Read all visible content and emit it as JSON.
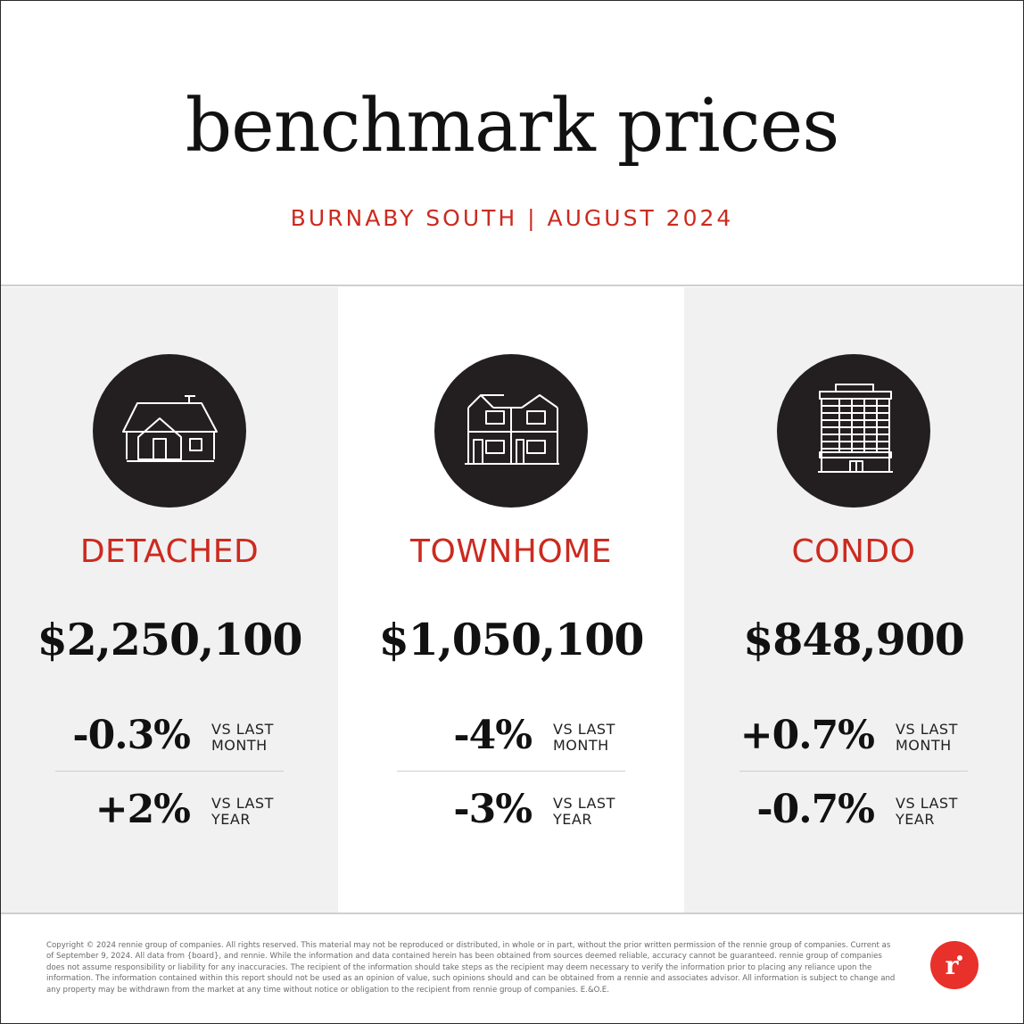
{
  "header": {
    "title": "benchmark prices",
    "subtitle": "BURNABY SOUTH | AUGUST 2024"
  },
  "colors": {
    "accent": "#cc2a1f",
    "icon_bg": "#231f20",
    "panel_gray": "#f1f1f1",
    "logo": "#e8312a"
  },
  "panels": [
    {
      "icon": "detached-house-icon",
      "label": "DETACHED",
      "price": "$2,250,100",
      "month_change": "-0.3%",
      "month_label_1": "VS LAST",
      "month_label_2": "MONTH",
      "year_change": "+2%",
      "year_label_1": "VS LAST",
      "year_label_2": "YEAR"
    },
    {
      "icon": "townhome-icon",
      "label": "TOWNHOME",
      "price": "$1,050,100",
      "month_change": "-4%",
      "month_label_1": "VS LAST",
      "month_label_2": "MONTH",
      "year_change": "-3%",
      "year_label_1": "VS LAST",
      "year_label_2": "YEAR"
    },
    {
      "icon": "condo-building-icon",
      "label": "CONDO",
      "price": "$848,900",
      "month_change": "+0.7%",
      "month_label_1": "VS LAST",
      "month_label_2": "MONTH",
      "year_change": "-0.7%",
      "year_label_1": "VS LAST",
      "year_label_2": "YEAR"
    }
  ],
  "footer": {
    "disclaimer": "Copyright © 2024 rennie group of companies. All rights reserved. This material may not be reproduced or distributed, in whole or in part, without the prior written permission of the rennie group of companies. Current as of September 9, 2024. All data from {board}, and rennie. While the information and data contained herein has been obtained from sources deemed reliable, accuracy cannot be guaranteed. rennie group of companies does not assume responsibility or liability for any inaccuracies. The recipient of the information should take steps as the recipient may deem necessary to verify the information prior to placing any reliance upon the information. The information contained within this report should not be used as an opinion of value, such opinions should and can be obtained from a rennie and associates advisor. All information is subject to change and any property may be withdrawn from the market at any time without notice or obligation to the recipient from rennie group of companies. E.&O.E.",
    "logo_letter": "r",
    "logo_icon": "rennie-logo-icon"
  }
}
